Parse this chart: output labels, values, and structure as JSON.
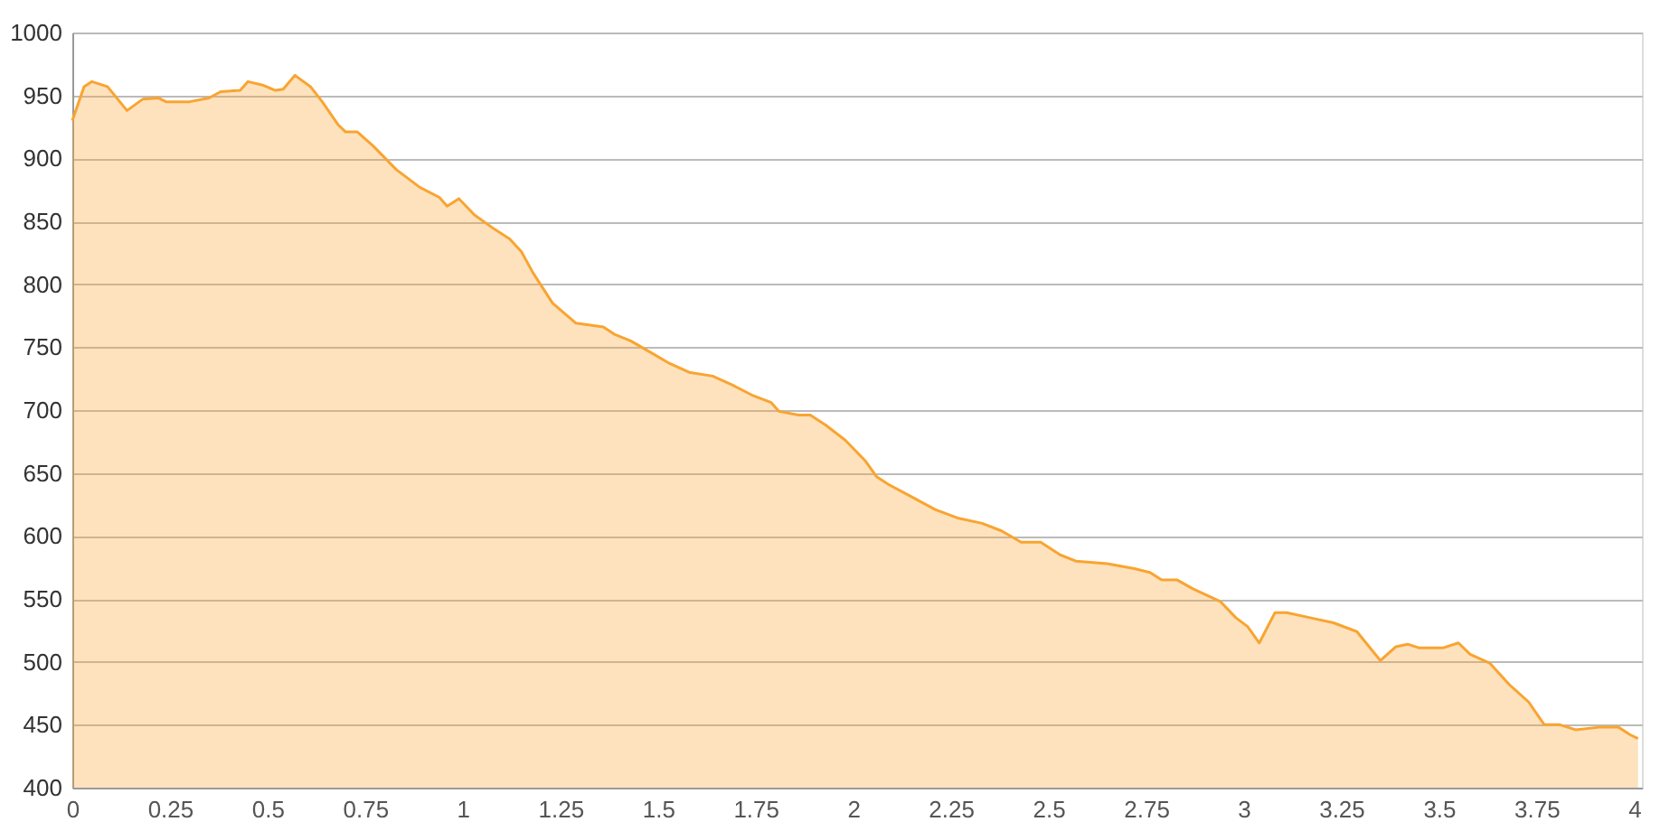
{
  "chart_data": {
    "type": "area",
    "x": [
      0,
      0.03,
      0.05,
      0.09,
      0.14,
      0.18,
      0.22,
      0.24,
      0.3,
      0.35,
      0.38,
      0.43,
      0.45,
      0.49,
      0.52,
      0.54,
      0.57,
      0.61,
      0.64,
      0.68,
      0.7,
      0.73,
      0.77,
      0.83,
      0.89,
      0.94,
      0.96,
      0.99,
      1.03,
      1.08,
      1.12,
      1.15,
      1.18,
      1.23,
      1.29,
      1.36,
      1.39,
      1.43,
      1.48,
      1.53,
      1.58,
      1.64,
      1.69,
      1.74,
      1.79,
      1.81,
      1.86,
      1.89,
      1.93,
      1.98,
      2.03,
      2.06,
      2.09,
      2.15,
      2.21,
      2.27,
      2.33,
      2.38,
      2.43,
      2.48,
      2.53,
      2.57,
      2.65,
      2.72,
      2.76,
      2.79,
      2.83,
      2.87,
      2.94,
      2.98,
      3.01,
      3.04,
      3.08,
      3.11,
      3.17,
      3.23,
      3.29,
      3.35,
      3.39,
      3.42,
      3.45,
      3.51,
      3.55,
      3.58,
      3.63,
      3.68,
      3.73,
      3.77,
      3.81,
      3.85,
      3.91,
      3.96,
      3.99,
      4.01
    ],
    "series": [
      {
        "color": "#f9a431",
        "values": [
          930,
          957,
          961,
          957,
          938,
          947,
          948,
          945,
          945,
          948,
          953,
          954,
          961,
          958,
          954,
          955,
          966,
          957,
          945,
          927,
          921,
          921,
          910,
          891,
          877,
          869,
          862,
          868,
          855,
          844,
          836,
          826,
          809,
          785,
          769,
          766,
          760,
          755,
          746,
          737,
          730,
          727,
          720,
          712,
          706,
          699,
          696,
          696,
          688,
          676,
          660,
          647,
          641,
          631,
          621,
          614,
          610,
          604,
          595,
          595,
          585,
          580,
          578,
          574,
          571,
          565,
          565,
          558,
          548,
          535,
          528,
          515,
          539,
          539,
          535,
          531,
          524,
          501,
          512,
          514,
          511,
          511,
          515,
          506,
          499,
          482,
          468,
          450,
          450,
          446,
          448,
          448,
          442,
          439
        ]
      }
    ],
    "xlim": [
      0,
      4.02
    ],
    "xticks": [
      0,
      0.25,
      0.5,
      0.75,
      1,
      1.25,
      1.5,
      1.75,
      2,
      2.25,
      2.5,
      2.75,
      3,
      3.25,
      3.5,
      3.75,
      4
    ],
    "ylim": [
      400,
      1000
    ],
    "yticks": [
      400,
      450,
      500,
      550,
      600,
      650,
      700,
      750,
      800,
      850,
      900,
      950,
      1000
    ],
    "grid": "y"
  }
}
